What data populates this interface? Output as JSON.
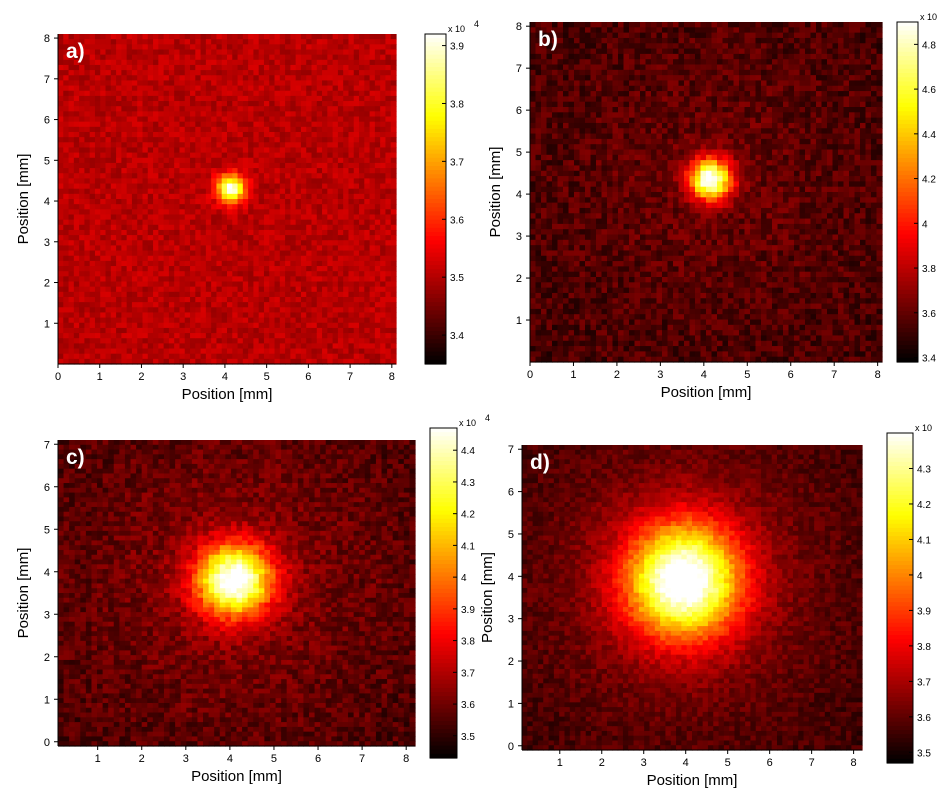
{
  "chart_data": [
    {
      "type": "heatmap",
      "panel_label": "a)",
      "xlabel": "Position [mm]",
      "ylabel": "Position [mm]",
      "xlim": [
        0,
        8.1
      ],
      "ylim": [
        0,
        8.1
      ],
      "xticks": [
        0,
        1,
        2,
        3,
        4,
        5,
        6,
        7,
        8
      ],
      "yticks": [
        1,
        2,
        3,
        4,
        5,
        6,
        7,
        8
      ],
      "spot": {
        "x": 4.15,
        "y": 4.3,
        "width_mm": 0.55,
        "peak": 3.92
      },
      "colorbar": {
        "min": 3.35,
        "max": 3.92,
        "ticks": [
          3.4,
          3.5,
          3.6,
          3.7,
          3.8,
          3.9
        ],
        "tick_labels": [
          "3.4",
          "3.5",
          "3.6",
          "3.7",
          "3.8",
          "3.9"
        ],
        "multiplier": "x 10",
        "exponent": "4"
      },
      "colormap": "hot"
    },
    {
      "type": "heatmap",
      "panel_label": "b)",
      "xlabel": "Position [mm]",
      "ylabel": "Position [mm]",
      "xlim": [
        0,
        8.1
      ],
      "ylim": [
        0,
        8.1
      ],
      "xticks": [
        0,
        1,
        2,
        3,
        4,
        5,
        6,
        7,
        8
      ],
      "yticks": [
        1,
        2,
        3,
        4,
        5,
        6,
        7,
        8
      ],
      "spot": {
        "x": 4.15,
        "y": 4.35,
        "width_mm": 0.8,
        "peak": 4.9
      },
      "colorbar": {
        "min": 3.38,
        "max": 4.9,
        "ticks": [
          3.4,
          3.6,
          3.8,
          4.0,
          4.2,
          4.4,
          4.6,
          4.8
        ],
        "tick_labels": [
          "3.4",
          "3.6",
          "3.8",
          "4",
          "4.2",
          "4.4",
          "4.6",
          "4.8"
        ],
        "multiplier": "x 10",
        "exponent": "4"
      },
      "colormap": "hot"
    },
    {
      "type": "heatmap",
      "panel_label": "c)",
      "xlabel": "Position [mm]",
      "ylabel": "Position [mm]",
      "xlim": [
        0.1,
        8.2
      ],
      "ylim": [
        -0.1,
        7.1
      ],
      "xticks": [
        1,
        2,
        3,
        4,
        5,
        6,
        7,
        8
      ],
      "yticks": [
        0,
        1,
        2,
        3,
        4,
        5,
        6,
        7
      ],
      "spot": {
        "x": 4.1,
        "y": 3.8,
        "width_mm": 1.4,
        "peak": 4.45
      },
      "colorbar": {
        "min": 3.43,
        "max": 4.47,
        "ticks": [
          3.5,
          3.6,
          3.7,
          3.8,
          3.9,
          4.0,
          4.1,
          4.2,
          4.3,
          4.4
        ],
        "tick_labels": [
          "3.5",
          "3.6",
          "3.7",
          "3.8",
          "3.9",
          "4",
          "4.1",
          "4.2",
          "4.3",
          "4.4"
        ],
        "multiplier": "x 10",
        "exponent": "4"
      },
      "colormap": "hot"
    },
    {
      "type": "heatmap",
      "panel_label": "d)",
      "xlabel": "Position [mm]",
      "ylabel": "Position [mm]",
      "xlim": [
        0.1,
        8.2
      ],
      "ylim": [
        -0.1,
        7.1
      ],
      "xticks": [
        1,
        2,
        3,
        4,
        5,
        6,
        7,
        8
      ],
      "yticks": [
        0,
        1,
        2,
        3,
        4,
        5,
        6,
        7
      ],
      "spot": {
        "x": 3.95,
        "y": 3.9,
        "width_mm": 2.2,
        "peak": 4.38
      },
      "colorbar": {
        "min": 3.47,
        "max": 4.4,
        "ticks": [
          3.5,
          3.6,
          3.7,
          3.8,
          3.9,
          4.0,
          4.1,
          4.2,
          4.3
        ],
        "tick_labels": [
          "3.5",
          "3.6",
          "3.7",
          "3.8",
          "3.9",
          "4",
          "4.1",
          "4.2",
          "4.3"
        ],
        "multiplier": "x 10",
        "exponent": "4"
      },
      "colormap": "hot"
    }
  ]
}
